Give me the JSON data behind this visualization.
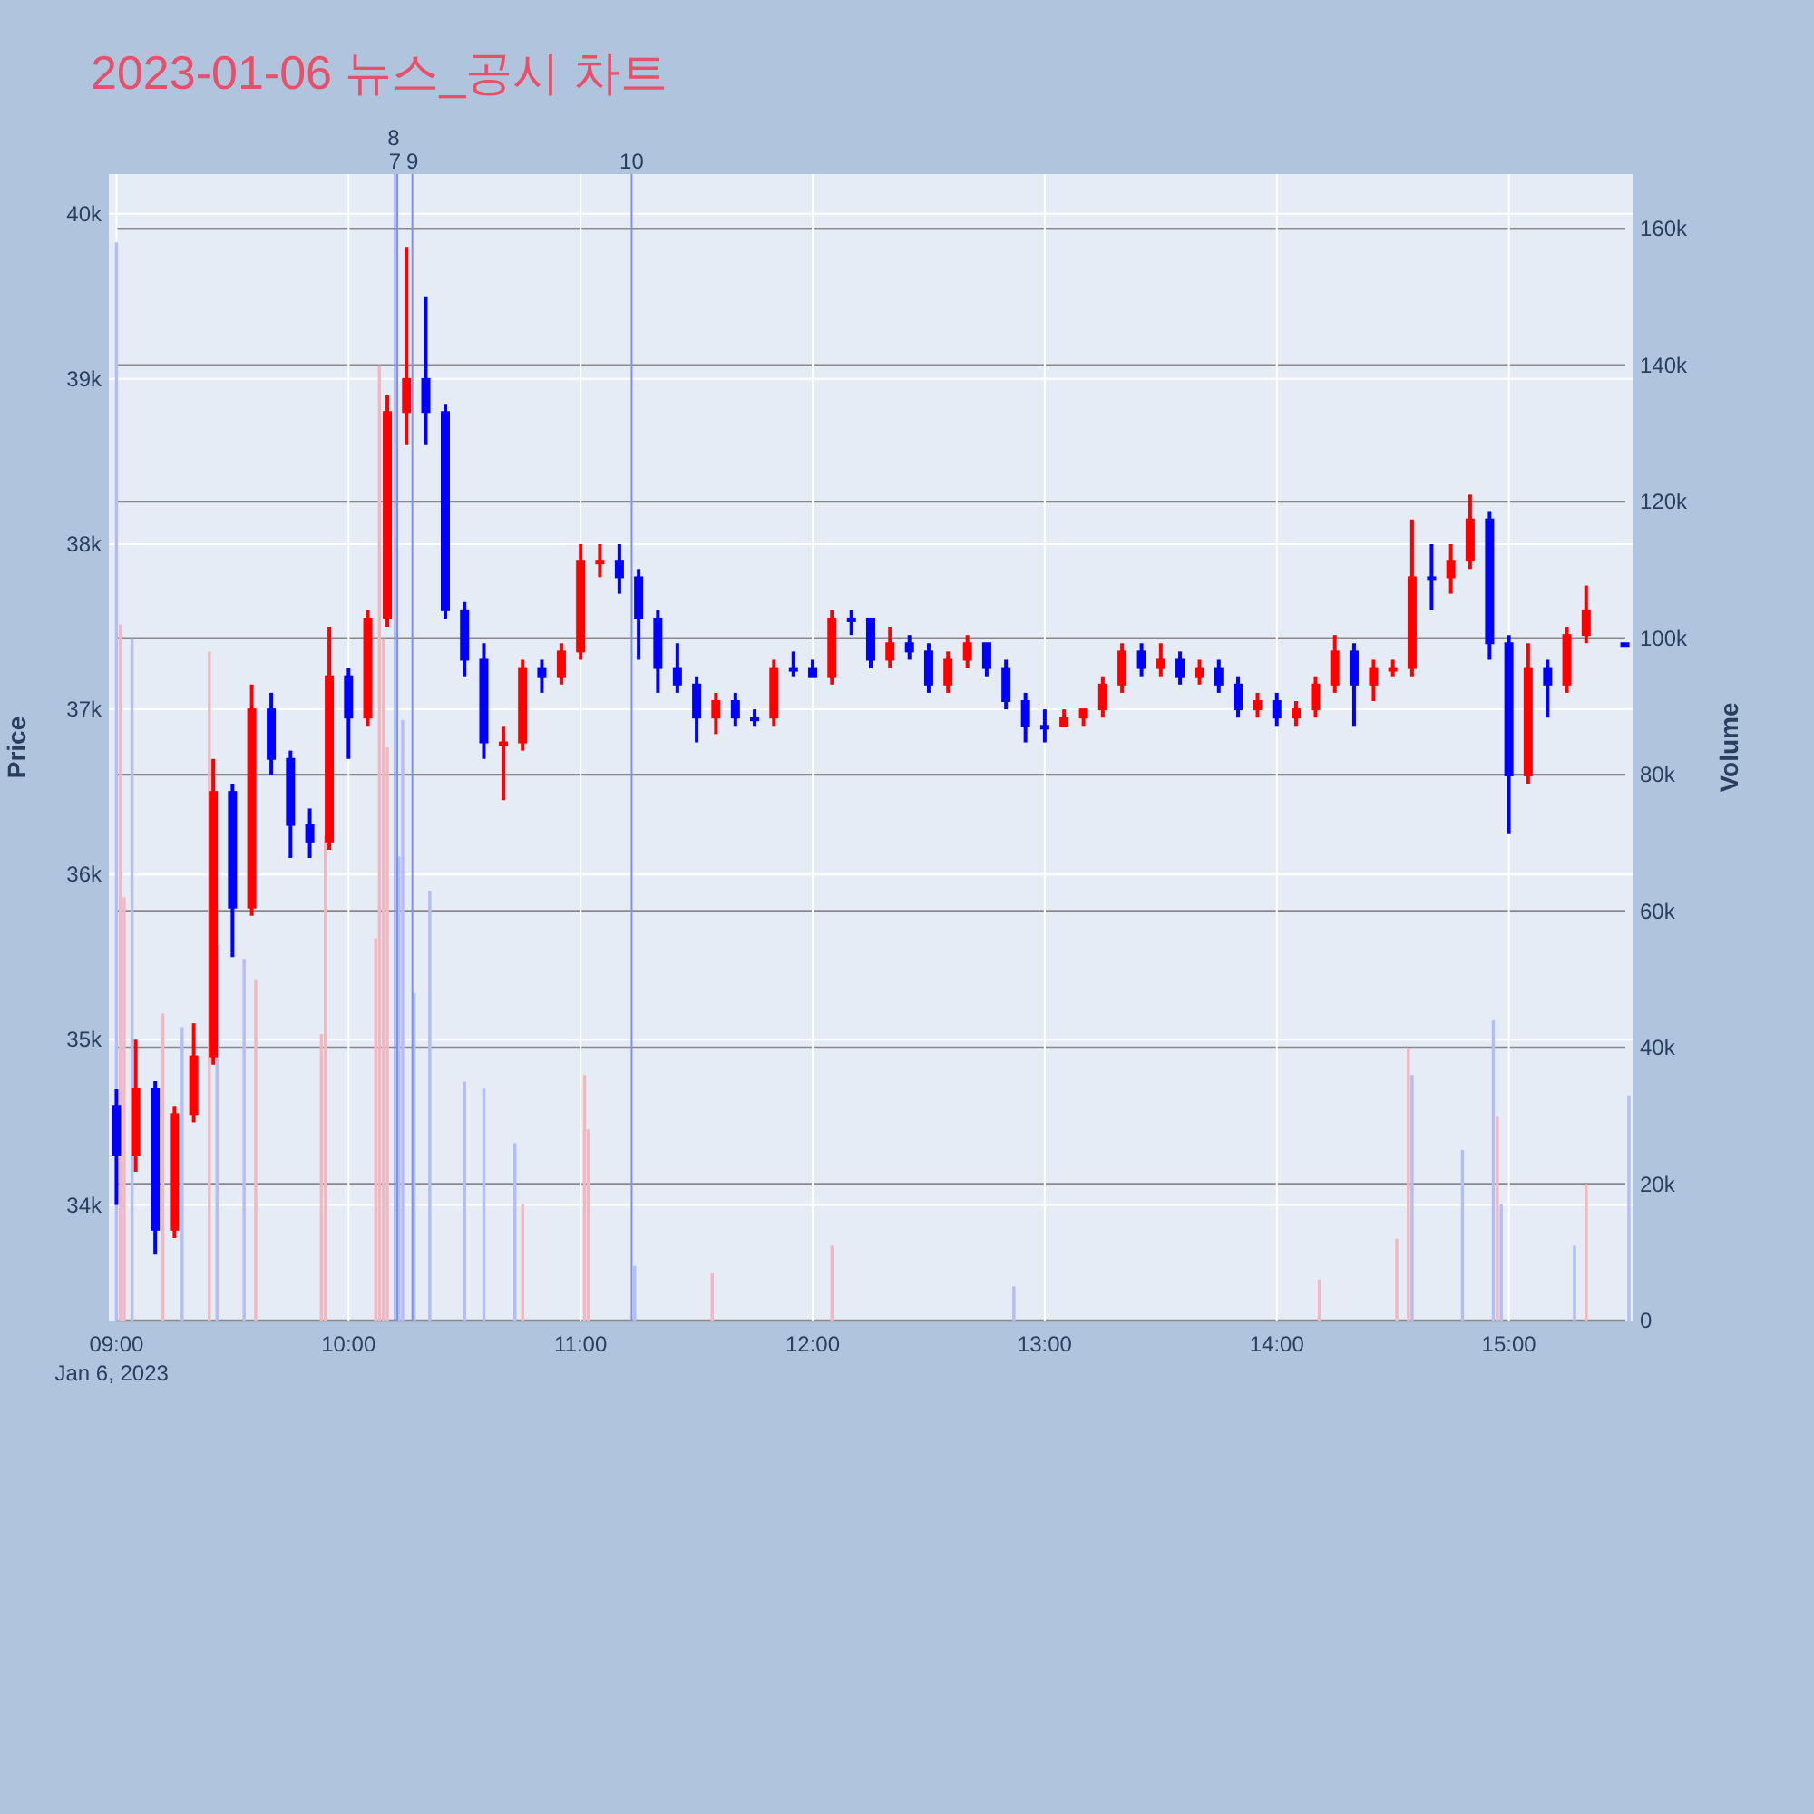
{
  "chart_data": {
    "type": "candlestick",
    "title": "2023-01-06 뉴스_공시 차트",
    "ylabel": "Price",
    "y2label": "Volume",
    "xlim": [
      8.967,
      15.533
    ],
    "xticks": [
      {
        "value": 9,
        "label": "09:00"
      },
      {
        "value": 10,
        "label": "10:00"
      },
      {
        "value": 11,
        "label": "11:00"
      },
      {
        "value": 12,
        "label": "12:00"
      },
      {
        "value": 13,
        "label": "13:00"
      },
      {
        "value": 14,
        "label": "14:00"
      },
      {
        "value": 15,
        "label": "15:00"
      }
    ],
    "ylim": [
      33300,
      40240
    ],
    "yticks": [
      {
        "value": 34000,
        "label": "34k"
      },
      {
        "value": 35000,
        "label": "35k"
      },
      {
        "value": 36000,
        "label": "36k"
      },
      {
        "value": 37000,
        "label": "37k"
      },
      {
        "value": 38000,
        "label": "38k"
      },
      {
        "value": 39000,
        "label": "39k"
      },
      {
        "value": 40000,
        "label": "40k"
      }
    ],
    "y2lim": [
      0,
      168000
    ],
    "y2ticks": [
      0,
      {
        "value": 20000,
        "label": "20k"
      },
      {
        "value": 40000,
        "label": "40k"
      },
      {
        "value": 60000,
        "label": "60k"
      },
      {
        "value": 80000,
        "label": "80k"
      },
      {
        "value": 100000,
        "label": "100k"
      },
      {
        "value": 120000,
        "label": "120k"
      },
      {
        "value": 140000,
        "label": "140k"
      },
      {
        "value": 160000,
        "label": "160k"
      }
    ],
    "grid": true,
    "annotations": [
      "Jan 6, 2023",
      "7",
      "8",
      "9",
      "10"
    ],
    "ref_lines": [
      {
        "axis": "x",
        "value": 10.2,
        "color": "#8090f0"
      },
      {
        "axis": "x",
        "value": 10.21,
        "color": "#8090f0"
      },
      {
        "axis": "x",
        "value": 10.275,
        "color": "#8090f0"
      },
      {
        "axis": "x",
        "value": 11.22,
        "color": "#8090f0"
      }
    ],
    "series": [
      {
        "type": "bar",
        "axis": "y2",
        "x": [
          9,
          9.017,
          9.033,
          9.067,
          9.2,
          9.283,
          9.4,
          9.433,
          9.55,
          9.6,
          9.883,
          9.9,
          10.117,
          10.133,
          10.15,
          10.167,
          10.217,
          10.233,
          10.283,
          10.35,
          10.5,
          10.583,
          10.717,
          10.75,
          11.017,
          11.033,
          11.233,
          11.567,
          12.083,
          12.867,
          14.183,
          14.517,
          14.567,
          14.583,
          14.8,
          14.933,
          14.95,
          14.967,
          15.283,
          15.333,
          15.517
        ],
        "values": [
          158000,
          102000,
          62000,
          100000,
          45000,
          43000,
          98000,
          55000,
          53000,
          50000,
          42000,
          71000,
          56000,
          140000,
          100000,
          84000,
          68000,
          88000,
          48000,
          63000,
          35000,
          34000,
          26000,
          17000,
          36000,
          28000,
          8000,
          7000,
          11000,
          5000,
          6000,
          12000,
          40000,
          36000,
          25000,
          44000,
          30000,
          17000,
          11000,
          20000,
          33000
        ],
        "colors": [
          "#b4bdf4",
          "#f4b6bf",
          "#f4b6bf",
          "#b4bdf4",
          "#f4b6bf",
          "#b4bdf4",
          "#f4b6bf",
          "#b4bdf4",
          "#b4bdf4",
          "#f4b6bf",
          "#f4b6bf",
          "#f4b6bf",
          "#f4b6bf",
          "#f4b6bf",
          "#f4b6bf",
          "#f4b6bf",
          "#b4bdf4",
          "#b4bdf4",
          "#b4bdf4",
          "#b4bdf4",
          "#b4bdf4",
          "#b4bdf4",
          "#b4bdf4",
          "#f4b6bf",
          "#f4b6bf",
          "#f4b6bf",
          "#b4bdf4",
          "#f4b6bf",
          "#f4b6bf",
          "#b4bdf4",
          "#f4b6bf",
          "#f4b6bf",
          "#f4b6bf",
          "#b4bdf4",
          "#b4bdf4",
          "#b4bdf4",
          "#f4b6bf",
          "#b4bdf4",
          "#b4bdf4",
          "#f4b6bf",
          "#b4bdf4"
        ]
      },
      {
        "color": "#ff0000",
        "x": [
          9.083,
          9.25,
          9.333,
          9.417,
          9.583,
          9.917,
          10.083,
          10.167,
          10.25,
          10.667,
          10.75,
          10.917,
          11,
          11.083,
          11.583,
          11.833,
          12.083,
          12.333,
          12.583,
          12.667,
          13.083,
          13.167,
          13.25,
          13.333,
          13.5,
          13.667,
          13.917,
          14.083,
          14.167,
          14.25,
          14.417,
          14.5,
          14.583,
          14.75,
          14.833,
          15.083,
          15.25,
          15.333
        ],
        "ohlc": [
          [
            34300,
            35000,
            34200,
            34700
          ],
          [
            33850,
            34600,
            33800,
            34550
          ],
          [
            34550,
            35100,
            34500,
            34900
          ],
          [
            34900,
            36700,
            34850,
            36500
          ],
          [
            35800,
            37150,
            35750,
            37000
          ],
          [
            36200,
            37500,
            36150,
            37200
          ],
          [
            36950,
            37600,
            36900,
            37550
          ],
          [
            37550,
            38900,
            37500,
            38800
          ],
          [
            38800,
            39800,
            38600,
            39000
          ],
          [
            36800,
            36900,
            36450,
            36800
          ],
          [
            36800,
            37300,
            36750,
            37250
          ],
          [
            37200,
            37400,
            37150,
            37350
          ],
          [
            37350,
            38000,
            37300,
            37900
          ],
          [
            37900,
            38000,
            37800,
            37900
          ],
          [
            36950,
            37100,
            36850,
            37050
          ],
          [
            36950,
            37300,
            36900,
            37250
          ],
          [
            37200,
            37600,
            37150,
            37550
          ],
          [
            37300,
            37500,
            37250,
            37400
          ],
          [
            37150,
            37350,
            37100,
            37300
          ],
          [
            37300,
            37450,
            37250,
            37400
          ],
          [
            36900,
            37000,
            36900,
            36950
          ],
          [
            36950,
            37000,
            36900,
            37000
          ],
          [
            37000,
            37200,
            36950,
            37150
          ],
          [
            37150,
            37400,
            37100,
            37350
          ],
          [
            37250,
            37400,
            37200,
            37300
          ],
          [
            37200,
            37300,
            37150,
            37250
          ],
          [
            37000,
            37100,
            36950,
            37050
          ],
          [
            36950,
            37050,
            36900,
            37000
          ],
          [
            37000,
            37200,
            36950,
            37150
          ],
          [
            37150,
            37450,
            37100,
            37350
          ],
          [
            37150,
            37300,
            37050,
            37250
          ],
          [
            37250,
            37300,
            37200,
            37250
          ],
          [
            37250,
            38150,
            37200,
            37800
          ],
          [
            37800,
            38000,
            37700,
            37900
          ],
          [
            37900,
            38300,
            37850,
            38150
          ],
          [
            36600,
            37400,
            36550,
            37250
          ],
          [
            37150,
            37500,
            37100,
            37450
          ],
          [
            37450,
            37750,
            37400,
            37600
          ]
        ]
      },
      {
        "color": "#0000ff",
        "x": [
          9,
          9.167,
          9.5,
          9.667,
          9.75,
          9.833,
          10,
          10.333,
          10.417,
          10.5,
          10.583,
          10.833,
          11.167,
          11.25,
          11.333,
          11.417,
          11.5,
          11.667,
          11.75,
          11.917,
          12,
          12.167,
          12.25,
          12.417,
          12.5,
          12.75,
          12.833,
          12.917,
          13,
          13.417,
          13.583,
          13.75,
          13.833,
          14,
          14.333,
          14.667,
          14.917,
          15,
          15.167,
          15.5
        ],
        "ohlc": [
          [
            34600,
            34700,
            34000,
            34300
          ],
          [
            34700,
            34750,
            33700,
            33850
          ],
          [
            36500,
            36550,
            35500,
            35800
          ],
          [
            37000,
            37100,
            36600,
            36700
          ],
          [
            36700,
            36750,
            36100,
            36300
          ],
          [
            36300,
            36400,
            36100,
            36200
          ],
          [
            37200,
            37250,
            36700,
            36950
          ],
          [
            39000,
            39500,
            38600,
            38800
          ],
          [
            38800,
            38850,
            37550,
            37600
          ],
          [
            37600,
            37650,
            37200,
            37300
          ],
          [
            37300,
            37400,
            36700,
            36800
          ],
          [
            37250,
            37300,
            37100,
            37200
          ],
          [
            37900,
            38000,
            37700,
            37800
          ],
          [
            37800,
            37850,
            37300,
            37550
          ],
          [
            37550,
            37600,
            37100,
            37250
          ],
          [
            37250,
            37400,
            37100,
            37150
          ],
          [
            37150,
            37200,
            36800,
            36950
          ],
          [
            37050,
            37100,
            36900,
            36950
          ],
          [
            36950,
            37000,
            36900,
            36950
          ],
          [
            37250,
            37350,
            37200,
            37250
          ],
          [
            37250,
            37300,
            37200,
            37200
          ],
          [
            37550,
            37600,
            37450,
            37550
          ],
          [
            37550,
            37550,
            37250,
            37300
          ],
          [
            37400,
            37450,
            37300,
            37350
          ],
          [
            37350,
            37400,
            37100,
            37150
          ],
          [
            37400,
            37400,
            37200,
            37250
          ],
          [
            37250,
            37300,
            37000,
            37050
          ],
          [
            37050,
            37100,
            36800,
            36900
          ],
          [
            36900,
            37000,
            36800,
            36900
          ],
          [
            37350,
            37400,
            37200,
            37250
          ],
          [
            37300,
            37350,
            37150,
            37200
          ],
          [
            37250,
            37300,
            37100,
            37150
          ],
          [
            37150,
            37200,
            36950,
            37000
          ],
          [
            37050,
            37100,
            36900,
            36950
          ],
          [
            37350,
            37400,
            36900,
            37150
          ],
          [
            37800,
            38000,
            37600,
            37800
          ],
          [
            38150,
            38200,
            37300,
            37400
          ],
          [
            37400,
            37450,
            36250,
            36600
          ],
          [
            37250,
            37300,
            36950,
            37150
          ],
          [
            37400,
            37400,
            37400,
            37400
          ]
        ]
      }
    ]
  }
}
